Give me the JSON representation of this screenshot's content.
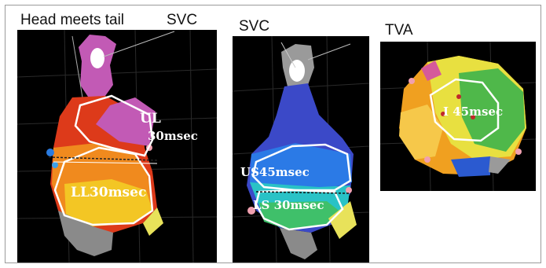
{
  "figure": {
    "panel_1": {
      "header_left": "Head meets tail",
      "header_right": "SVC",
      "regions": [
        {
          "label": "UL",
          "sublabel": "30msec"
        },
        {
          "label": "LL30msec"
        }
      ]
    },
    "panel_2": {
      "header": "SVC",
      "regions": [
        {
          "label": "US45msec"
        },
        {
          "label": "LS 30msec"
        }
      ]
    },
    "panel_3": {
      "header": "TVA",
      "regions": [
        {
          "label": "I 45msec"
        }
      ]
    }
  },
  "colors": {
    "panel_background": "#000000",
    "header_text": "#111111",
    "region_outline": "#ffffff",
    "frame_border": "#9a9a9a"
  }
}
